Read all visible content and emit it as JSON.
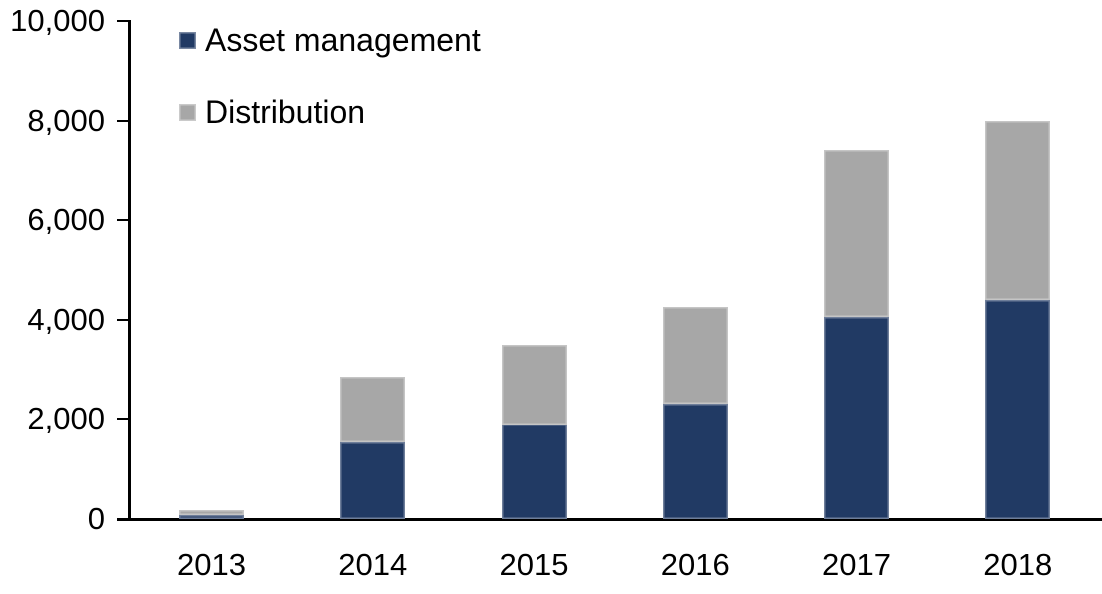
{
  "chart_data": {
    "type": "bar",
    "stacked": true,
    "title": "",
    "xlabel": "",
    "ylabel": "",
    "categories": [
      "2013",
      "2014",
      "2015",
      "2016",
      "2017",
      "2018"
    ],
    "series": [
      {
        "name": "Asset management",
        "color": "#213A64",
        "values": [
          80,
          1550,
          1900,
          2300,
          4050,
          4400
        ]
      },
      {
        "name": "Distribution",
        "color": "#A7A7A7",
        "values": [
          100,
          1300,
          1600,
          1950,
          3350,
          3600
        ]
      }
    ],
    "totals": [
      180,
      2850,
      3500,
      4250,
      7400,
      8000
    ],
    "ylim": [
      0,
      10000
    ],
    "y_ticks": [
      0,
      2000,
      4000,
      6000,
      8000,
      10000
    ],
    "y_tick_labels": [
      "0",
      "2,000",
      "4,000",
      "6,000",
      "8,000",
      "10,000"
    ],
    "grid": false,
    "legend_position": "top-left",
    "axis_color": "#000000",
    "background_color": "#FFFFFF"
  }
}
